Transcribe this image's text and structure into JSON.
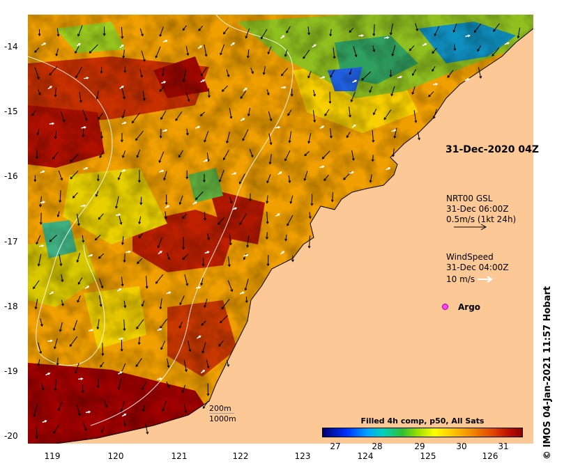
{
  "date_label": "31-Dec-2020 04Z",
  "credit": "© IMOS 04-Jan-2021 11:57 Hobart",
  "lat_ticks": [
    "-14",
    "-15",
    "-16",
    "-17",
    "-18",
    "-19",
    "-20"
  ],
  "lon_ticks": [
    "119",
    "120",
    "121",
    "122",
    "123",
    "124",
    "125",
    "126"
  ],
  "current_legend": {
    "line1": "NRT00 GSL",
    "line2": "31-Dec 06:00Z",
    "line3": "0.5m/s (1kt 24h)"
  },
  "wind_legend": {
    "line1": "WindSpeed",
    "line2": "31-Dec 04:00Z",
    "line3": "10 m/s"
  },
  "argo_label": "Argo",
  "bathymetry_legend": {
    "shallow": "200m",
    "deep": "1000m"
  },
  "colorbar": {
    "title": "Filled 4h comp, p50, All Sats",
    "ticks": [
      "27",
      "28",
      "29",
      "30",
      "31"
    ]
  },
  "colors": {
    "land": "#fcc896",
    "sst_hot": "#900000",
    "sst_cold": "#000070",
    "argo": "#ff40ff"
  }
}
